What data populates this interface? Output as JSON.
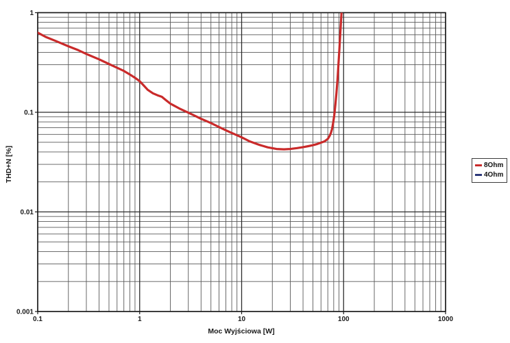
{
  "chart_data": {
    "type": "line",
    "title": "",
    "xlabel": "Moc Wyjściowa [W]",
    "ylabel": "THD+N [%]",
    "x_scale": "log",
    "y_scale": "log",
    "xlim": [
      0.1,
      1000
    ],
    "ylim": [
      0.001,
      1
    ],
    "x_tick_values": [
      0.1,
      1,
      10,
      100,
      1000
    ],
    "x_tick_labels": [
      "0.1",
      "1",
      "10",
      "100",
      "1000"
    ],
    "y_tick_values": [
      1,
      0.1,
      0.01,
      0.001
    ],
    "y_tick_labels": [
      "1",
      "0.1",
      "0.01",
      "0.001"
    ],
    "grid": {
      "major": true,
      "minor": true,
      "major_color": "#2b2b2b",
      "minor_color": "#585858"
    },
    "legend_position": "outside-right",
    "series": [
      {
        "name": "8Ohm",
        "color": "#c92a2a",
        "points": [
          [
            0.1,
            0.63
          ],
          [
            0.12,
            0.57
          ],
          [
            0.15,
            0.52
          ],
          [
            0.2,
            0.46
          ],
          [
            0.25,
            0.42
          ],
          [
            0.3,
            0.385
          ],
          [
            0.4,
            0.34
          ],
          [
            0.5,
            0.305
          ],
          [
            0.6,
            0.28
          ],
          [
            0.7,
            0.26
          ],
          [
            0.8,
            0.24
          ],
          [
            0.9,
            0.222
          ],
          [
            1.0,
            0.205
          ],
          [
            1.1,
            0.185
          ],
          [
            1.2,
            0.168
          ],
          [
            1.35,
            0.155
          ],
          [
            1.5,
            0.148
          ],
          [
            1.65,
            0.143
          ],
          [
            1.8,
            0.133
          ],
          [
            2.0,
            0.122
          ],
          [
            2.5,
            0.108
          ],
          [
            3.0,
            0.099
          ],
          [
            3.5,
            0.092
          ],
          [
            4.0,
            0.086
          ],
          [
            5.0,
            0.078
          ],
          [
            6.0,
            0.071
          ],
          [
            7.0,
            0.066
          ],
          [
            8.0,
            0.062
          ],
          [
            10,
            0.056
          ],
          [
            12,
            0.051
          ],
          [
            15,
            0.047
          ],
          [
            18,
            0.0445
          ],
          [
            22,
            0.0428
          ],
          [
            26,
            0.0425
          ],
          [
            30,
            0.0428
          ],
          [
            35,
            0.0437
          ],
          [
            40,
            0.0447
          ],
          [
            45,
            0.0457
          ],
          [
            50,
            0.0467
          ],
          [
            55,
            0.048
          ],
          [
            60,
            0.0495
          ],
          [
            65,
            0.051
          ],
          [
            70,
            0.054
          ],
          [
            73,
            0.058
          ],
          [
            75,
            0.062
          ],
          [
            77,
            0.068
          ],
          [
            79,
            0.078
          ],
          [
            81,
            0.093
          ],
          [
            83,
            0.118
          ],
          [
            85,
            0.155
          ],
          [
            87,
            0.21
          ],
          [
            89,
            0.3
          ],
          [
            91,
            0.44
          ],
          [
            93,
            0.65
          ],
          [
            95,
            0.92
          ],
          [
            96,
            1.12
          ]
        ]
      },
      {
        "name": "4Ohm",
        "color": "#2b3779",
        "points": []
      }
    ]
  }
}
